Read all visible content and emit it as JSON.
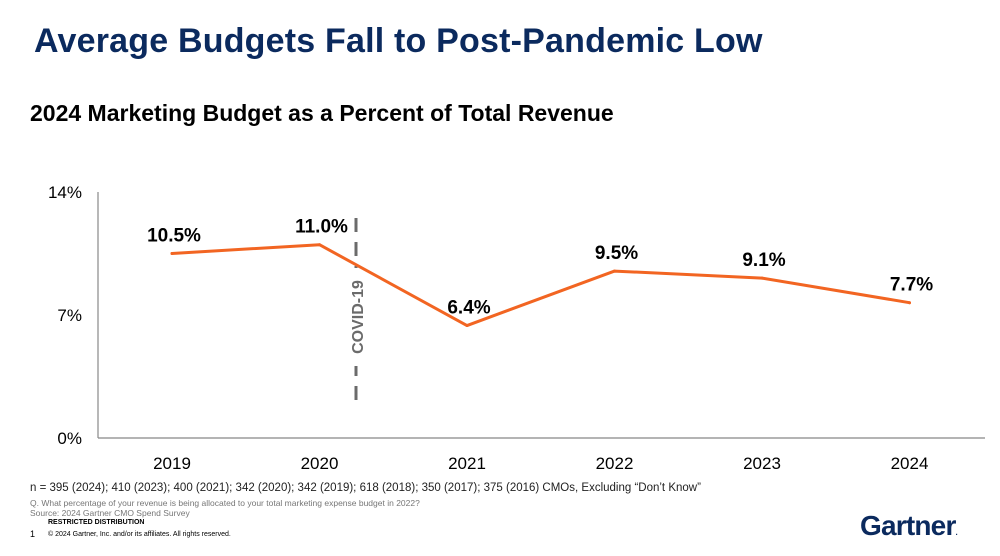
{
  "page": {
    "title": "Average Budgets Fall to Post-Pandemic Low",
    "subtitle": "2024 Marketing Budget as a Percent of Total Revenue",
    "footnote": "n = 395 (2024); 410 (2023); 400 (2021); 342 (2020); 342 (2019); 618 (2018); 350 (2017); 375 (2016) CMOs, Excluding “Don’t Know”",
    "question": "Q. What percentage of your revenue is being allocated to your total marketing expense budget in 2022?",
    "source": "Source: 2024 Gartner CMO Spend Survey",
    "restricted": "RESTRICTED DISTRIBUTION",
    "page_number": "1",
    "copyright": "© 2024 Gartner, Inc. and/or its affiliates. All rights reserved.",
    "logo": "Gartner",
    "logo_mark": "."
  },
  "chart_data": {
    "type": "line",
    "title": "2024 Marketing Budget as a Percent of Total Revenue",
    "categories": [
      "2019",
      "2020",
      "2021",
      "2022",
      "2023",
      "2024"
    ],
    "values": [
      10.5,
      11.0,
      6.4,
      9.5,
      9.1,
      7.7
    ],
    "data_labels": [
      "10.5%",
      "11.0%",
      "6.4%",
      "9.5%",
      "9.1%",
      "7.7%"
    ],
    "ylim": [
      0,
      14
    ],
    "y_ticks": [
      0,
      7,
      14
    ],
    "y_tick_labels": [
      "0%",
      "7%",
      "14%"
    ],
    "line_color": "#f26522",
    "grid": false,
    "annotation": {
      "text": "COVID-19",
      "position_between": [
        "2020",
        "2021"
      ],
      "style": "dashed vertical line"
    }
  }
}
